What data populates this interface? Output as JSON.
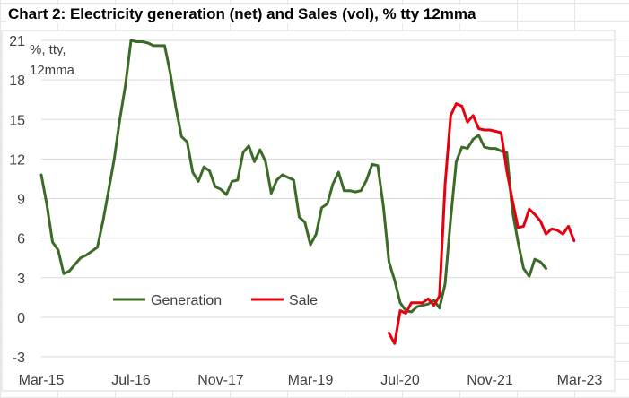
{
  "title": "Chart 2: Electricity generation (net) and Sales (vol), % tty 12mma",
  "chart_data": {
    "type": "line",
    "title": "Chart 2: Electricity generation (net) and Sales (vol), % tty 12mma",
    "unit_label_lines": [
      "%, tty,",
      "12mma"
    ],
    "x_ticks": [
      "Mar-15",
      "Jul-16",
      "Nov-17",
      "Mar-19",
      "Jul-20",
      "Nov-21",
      "Mar-23"
    ],
    "y_ticks": [
      -3,
      0,
      3,
      6,
      9,
      12,
      15,
      18,
      21
    ],
    "ylim": [
      -3,
      21
    ],
    "x_range_months": [
      "2015-03",
      "2023-03"
    ],
    "grid": true,
    "legend_position": "bottom-left",
    "series": [
      {
        "name": "Generation",
        "color": "#3c6b28",
        "data": [
          [
            "2015-03",
            10.8
          ],
          [
            "2015-04",
            8.5
          ],
          [
            "2015-05",
            5.7
          ],
          [
            "2015-06",
            5.1
          ],
          [
            "2015-07",
            3.3
          ],
          [
            "2015-08",
            3.5
          ],
          [
            "2015-09",
            4.0
          ],
          [
            "2015-10",
            4.5
          ],
          [
            "2015-11",
            4.7
          ],
          [
            "2015-12",
            5.0
          ],
          [
            "2016-01",
            5.3
          ],
          [
            "2016-02",
            7.3
          ],
          [
            "2016-03",
            9.6
          ],
          [
            "2016-04",
            12.0
          ],
          [
            "2016-05",
            15.0
          ],
          [
            "2016-06",
            17.6
          ],
          [
            "2016-07",
            21.0
          ],
          [
            "2016-08",
            20.9
          ],
          [
            "2016-09",
            20.9
          ],
          [
            "2016-10",
            20.8
          ],
          [
            "2016-11",
            20.6
          ],
          [
            "2016-12",
            20.6
          ],
          [
            "2017-01",
            20.6
          ],
          [
            "2017-02",
            18.5
          ],
          [
            "2017-03",
            15.9
          ],
          [
            "2017-04",
            13.7
          ],
          [
            "2017-05",
            13.3
          ],
          [
            "2017-06",
            11.0
          ],
          [
            "2017-07",
            10.3
          ],
          [
            "2017-08",
            11.4
          ],
          [
            "2017-09",
            11.1
          ],
          [
            "2017-10",
            9.9
          ],
          [
            "2017-11",
            9.7
          ],
          [
            "2017-12",
            9.3
          ],
          [
            "2018-01",
            10.3
          ],
          [
            "2018-02",
            10.4
          ],
          [
            "2018-03",
            12.5
          ],
          [
            "2018-04",
            13.0
          ],
          [
            "2018-05",
            11.8
          ],
          [
            "2018-06",
            12.7
          ],
          [
            "2018-07",
            11.8
          ],
          [
            "2018-08",
            9.4
          ],
          [
            "2018-09",
            10.4
          ],
          [
            "2018-10",
            10.8
          ],
          [
            "2018-11",
            10.6
          ],
          [
            "2018-12",
            10.4
          ],
          [
            "2019-01",
            7.6
          ],
          [
            "2019-02",
            7.2
          ],
          [
            "2019-03",
            5.5
          ],
          [
            "2019-04",
            6.3
          ],
          [
            "2019-05",
            8.3
          ],
          [
            "2019-06",
            8.6
          ],
          [
            "2019-07",
            10.1
          ],
          [
            "2019-08",
            11.0
          ],
          [
            "2019-09",
            9.6
          ],
          [
            "2019-10",
            9.6
          ],
          [
            "2019-11",
            9.5
          ],
          [
            "2019-12",
            9.6
          ],
          [
            "2020-01",
            10.4
          ],
          [
            "2020-02",
            11.6
          ],
          [
            "2020-03",
            11.5
          ],
          [
            "2020-04",
            8.4
          ],
          [
            "2020-05",
            4.2
          ],
          [
            "2020-06",
            2.8
          ],
          [
            "2020-07",
            1.1
          ],
          [
            "2020-08",
            0.5
          ],
          [
            "2020-09",
            0.4
          ],
          [
            "2020-10",
            0.8
          ],
          [
            "2020-11",
            0.9
          ],
          [
            "2020-12",
            1.0
          ],
          [
            "2021-01",
            1.3
          ],
          [
            "2021-02",
            0.7
          ],
          [
            "2021-03",
            2.5
          ],
          [
            "2021-04",
            7.5
          ],
          [
            "2021-05",
            11.8
          ],
          [
            "2021-06",
            12.9
          ],
          [
            "2021-07",
            12.8
          ],
          [
            "2021-08",
            13.5
          ],
          [
            "2021-09",
            13.8
          ],
          [
            "2021-10",
            12.9
          ],
          [
            "2021-11",
            12.8
          ],
          [
            "2021-12",
            12.8
          ],
          [
            "2022-01",
            12.6
          ],
          [
            "2022-02",
            12.5
          ],
          [
            "2022-03",
            8.1
          ],
          [
            "2022-04",
            5.7
          ],
          [
            "2022-05",
            3.7
          ],
          [
            "2022-06",
            3.1
          ],
          [
            "2022-07",
            4.4
          ],
          [
            "2022-08",
            4.2
          ],
          [
            "2022-09",
            3.7
          ]
        ]
      },
      {
        "name": "Sale",
        "color": "#e3000f",
        "data": [
          [
            "2020-05",
            -1.2
          ],
          [
            "2020-06",
            -2.0
          ],
          [
            "2020-07",
            0.5
          ],
          [
            "2020-08",
            0.3
          ],
          [
            "2020-09",
            1.1
          ],
          [
            "2020-10",
            1.1
          ],
          [
            "2020-11",
            1.1
          ],
          [
            "2020-12",
            1.4
          ],
          [
            "2021-01",
            0.9
          ],
          [
            "2021-02",
            1.6
          ],
          [
            "2021-03",
            10.0
          ],
          [
            "2021-04",
            15.3
          ],
          [
            "2021-05",
            16.2
          ],
          [
            "2021-06",
            16.0
          ],
          [
            "2021-07",
            14.8
          ],
          [
            "2021-08",
            15.3
          ],
          [
            "2021-09",
            14.3
          ],
          [
            "2021-10",
            14.2
          ],
          [
            "2021-11",
            14.2
          ],
          [
            "2021-12",
            14.1
          ],
          [
            "2022-01",
            14.0
          ],
          [
            "2022-02",
            11.1
          ],
          [
            "2022-03",
            8.9
          ],
          [
            "2022-04",
            6.8
          ],
          [
            "2022-05",
            6.9
          ],
          [
            "2022-06",
            8.2
          ],
          [
            "2022-07",
            7.8
          ],
          [
            "2022-08",
            7.3
          ],
          [
            "2022-09",
            6.3
          ],
          [
            "2022-10",
            6.7
          ],
          [
            "2022-11",
            6.6
          ],
          [
            "2022-12",
            6.3
          ],
          [
            "2023-01",
            6.9
          ],
          [
            "2023-02",
            5.8
          ]
        ]
      }
    ]
  }
}
